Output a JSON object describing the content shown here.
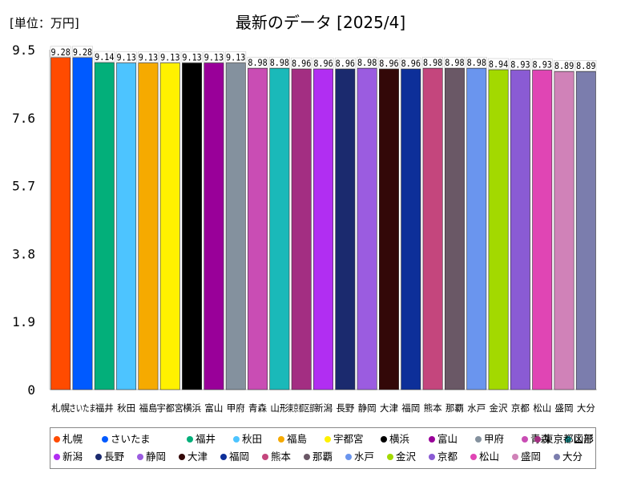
{
  "header": {
    "unit": "[単位：万円]",
    "title": "最新のデータ [2025/4]"
  },
  "chart_data": {
    "type": "bar",
    "title": "最新のデータ [2025/4]",
    "unit": "[単位：万円]",
    "ylim": [
      0,
      9.5
    ],
    "yticks": [
      "0",
      "1.9",
      "3.8",
      "5.7",
      "7.6",
      "9.5"
    ],
    "grid": false,
    "legend_position": "bottom",
    "categories": [
      "札幌",
      "さいたま",
      "福井",
      "秋田",
      "福島",
      "宇都宮",
      "横浜",
      "富山",
      "甲府",
      "青森",
      "山形",
      "東京都区部",
      "新潟",
      "長野",
      "静岡",
      "大津",
      "福岡",
      "熊本",
      "那覇",
      "水戸",
      "金沢",
      "京都",
      "松山",
      "盛岡",
      "大分"
    ],
    "values": [
      9.28,
      9.28,
      9.14,
      9.13,
      9.13,
      9.13,
      9.13,
      9.13,
      9.13,
      8.98,
      8.98,
      8.96,
      8.96,
      8.96,
      8.98,
      8.96,
      8.96,
      8.98,
      8.98,
      8.98,
      8.94,
      8.93,
      8.93,
      8.89,
      8.89
    ],
    "value_labels": [
      "9.28",
      "9.28",
      "9.14",
      "9.13",
      "9.13",
      "9.13",
      "9.13",
      "9.13",
      "9.13",
      "8.98",
      "8.98",
      "8.96",
      "8.96",
      "8.96",
      "8.98",
      "8.96",
      "8.96",
      "8.98",
      "8.98",
      "8.98",
      "8.94",
      "8.93",
      "8.93",
      "8.89",
      "8.89"
    ],
    "colors": [
      "#ff4b00",
      "#005aff",
      "#03af7a",
      "#4dc4ff",
      "#f6aa00",
      "#fff100",
      "#000000",
      "#990099",
      "#84919e",
      "#c94db4",
      "#1ab9b9",
      "#a32e82",
      "#b12ef2",
      "#1b2a6e",
      "#9b5ce0",
      "#330808",
      "#0d2f99",
      "#c4467d",
      "#6a5866",
      "#6a95ee",
      "#a3d900",
      "#8a5bd4",
      "#e045b4",
      "#d082b8",
      "#7b7dad"
    ]
  }
}
